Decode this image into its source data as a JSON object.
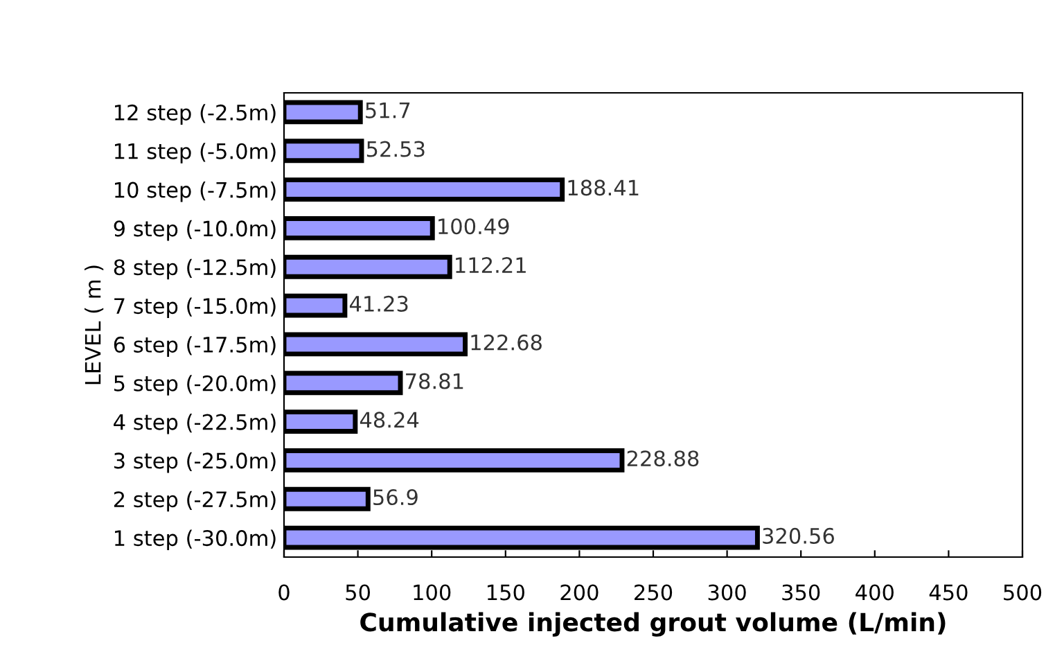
{
  "chart_data": {
    "type": "bar",
    "orientation": "horizontal",
    "xlabel": "Cumulative injected grout volume (L/min)",
    "ylabel": "LEVEL ( m )",
    "categories": [
      "12 step (-2.5m)",
      "11 step (-5.0m)",
      "10 step (-7.5m)",
      "9 step (-10.0m)",
      "8 step (-12.5m)",
      "7 step (-15.0m)",
      "6 step (-17.5m)",
      "5 step (-20.0m)",
      "4 step (-22.5m)",
      "3 step (-25.0m)",
      "2 step (-27.5m)",
      "1 step (-30.0m)"
    ],
    "values": [
      51.7,
      52.53,
      188.41,
      100.49,
      112.21,
      41.23,
      122.68,
      78.81,
      48.24,
      228.88,
      56.9,
      320.56
    ],
    "color": "#9999ff",
    "data_labels": true,
    "xlim": [
      0,
      500
    ],
    "xticks": [
      0,
      50,
      100,
      150,
      200,
      250,
      300,
      350,
      400,
      450,
      500
    ],
    "grid": false,
    "legend": false
  }
}
